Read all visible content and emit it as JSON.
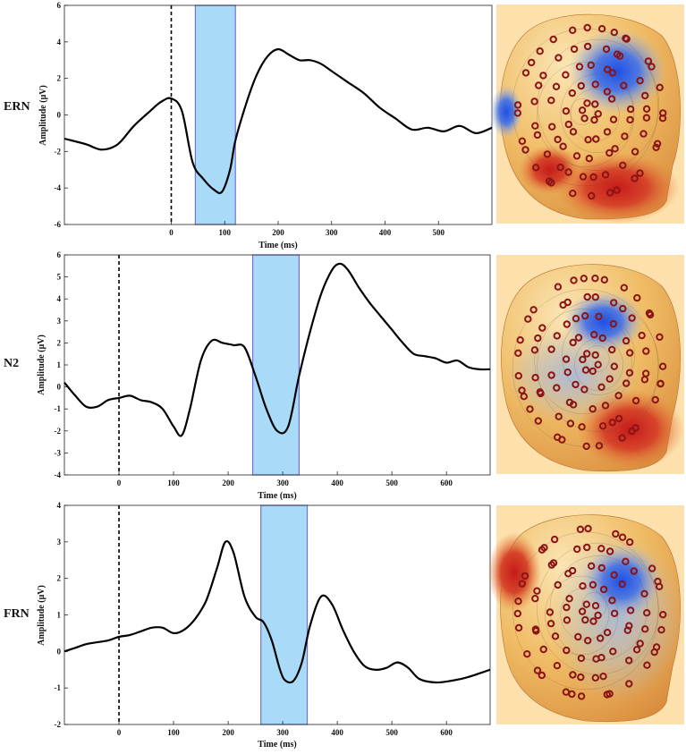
{
  "chart_data": [
    {
      "type": "line",
      "row_label": "ERN",
      "xlabel": "Time (ms)",
      "ylabel": "Amplitude (μV)",
      "xlim": [
        -200,
        600
      ],
      "ylim": [
        -6,
        6
      ],
      "xticks": [
        0,
        100,
        200,
        300,
        400,
        500
      ],
      "yticks": [
        -6,
        -4,
        -2,
        0,
        2,
        4,
        6
      ],
      "window_ms": [
        45,
        120
      ],
      "onset_ms": 0,
      "series": [
        {
          "name": "ERN waveform",
          "x": [
            -200,
            -160,
            -130,
            -100,
            -70,
            -40,
            -20,
            0,
            20,
            40,
            60,
            80,
            95,
            110,
            120,
            140,
            160,
            180,
            200,
            220,
            240,
            260,
            280,
            300,
            330,
            360,
            390,
            420,
            450,
            480,
            510,
            540,
            570,
            600
          ],
          "y": [
            -1.3,
            -1.6,
            -1.9,
            -1.6,
            -0.6,
            0.2,
            0.7,
            0.9,
            0.2,
            -2.6,
            -3.5,
            -4.1,
            -4.2,
            -3.0,
            -1.4,
            0.6,
            2.2,
            3.2,
            3.6,
            3.3,
            3.0,
            3.0,
            2.8,
            2.4,
            1.8,
            1.2,
            0.4,
            -0.2,
            -0.8,
            -0.7,
            -0.9,
            -0.6,
            -1.0,
            -0.7
          ]
        }
      ]
    },
    {
      "type": "line",
      "row_label": "N2",
      "xlabel": "Time (ms)",
      "ylabel": "Amplitude (μV)",
      "xlim": [
        -100,
        680
      ],
      "ylim": [
        -4,
        6
      ],
      "xticks": [
        0,
        100,
        200,
        300,
        400,
        500,
        600
      ],
      "yticks": [
        -4,
        -3,
        -2,
        -1,
        0,
        1,
        2,
        3,
        4,
        5,
        6
      ],
      "window_ms": [
        245,
        330
      ],
      "onset_ms": 0,
      "series": [
        {
          "name": "N2 waveform",
          "x": [
            -100,
            -80,
            -60,
            -40,
            -20,
            0,
            20,
            40,
            60,
            80,
            100,
            115,
            130,
            150,
            170,
            190,
            210,
            230,
            250,
            270,
            290,
            310,
            330,
            350,
            370,
            390,
            405,
            420,
            440,
            460,
            480,
            500,
            520,
            540,
            560,
            580,
            600,
            620,
            640,
            660,
            680
          ],
          "y": [
            0.2,
            -0.4,
            -0.9,
            -0.9,
            -0.6,
            -0.5,
            -0.4,
            -0.6,
            -0.7,
            -1.0,
            -1.8,
            -2.2,
            -1.0,
            1.2,
            2.1,
            2.0,
            1.9,
            1.8,
            0.5,
            -1.0,
            -2.0,
            -1.8,
            0.5,
            2.5,
            4.2,
            5.3,
            5.6,
            5.3,
            4.5,
            3.8,
            3.2,
            2.6,
            2.0,
            1.5,
            1.4,
            1.3,
            1.1,
            1.2,
            0.9,
            0.8,
            0.8
          ]
        }
      ]
    },
    {
      "type": "line",
      "row_label": "FRN",
      "xlabel": "Time (ms)",
      "ylabel": "Amplitude (μV)",
      "xlim": [
        -100,
        680
      ],
      "ylim": [
        -2,
        4
      ],
      "xticks": [
        0,
        100,
        200,
        300,
        400,
        500,
        600
      ],
      "yticks": [
        -2,
        -1,
        0,
        1,
        2,
        3,
        4
      ],
      "window_ms": [
        260,
        345
      ],
      "onset_ms": 0,
      "series": [
        {
          "name": "FRN waveform",
          "x": [
            -100,
            -80,
            -60,
            -40,
            -20,
            0,
            20,
            40,
            60,
            80,
            100,
            120,
            140,
            160,
            180,
            195,
            210,
            230,
            250,
            265,
            280,
            295,
            305,
            320,
            335,
            350,
            370,
            390,
            410,
            430,
            450,
            470,
            490,
            510,
            530,
            550,
            580,
            610,
            640,
            680
          ],
          "y": [
            0.0,
            0.1,
            0.2,
            0.25,
            0.3,
            0.4,
            0.45,
            0.55,
            0.65,
            0.65,
            0.5,
            0.6,
            0.9,
            1.4,
            2.3,
            3.0,
            2.7,
            1.5,
            0.95,
            0.8,
            0.3,
            -0.5,
            -0.8,
            -0.8,
            -0.3,
            0.7,
            1.5,
            1.3,
            0.6,
            0.0,
            -0.4,
            -0.5,
            -0.45,
            -0.3,
            -0.45,
            -0.75,
            -0.85,
            -0.8,
            -0.7,
            -0.5
          ]
        }
      ]
    }
  ],
  "topomaps": [
    {
      "name": "ERN scalp topography",
      "background": "#fde0ab"
    },
    {
      "name": "N2 scalp topography",
      "background": "#fde0ab"
    },
    {
      "name": "FRN scalp topography",
      "background": "#fde0ab"
    }
  ],
  "colors": {
    "trace": "#000000",
    "window_fill": "#a9daf8",
    "window_edge": "#7270d8",
    "onset_line": "#000000",
    "electrode": "#8b1414"
  }
}
